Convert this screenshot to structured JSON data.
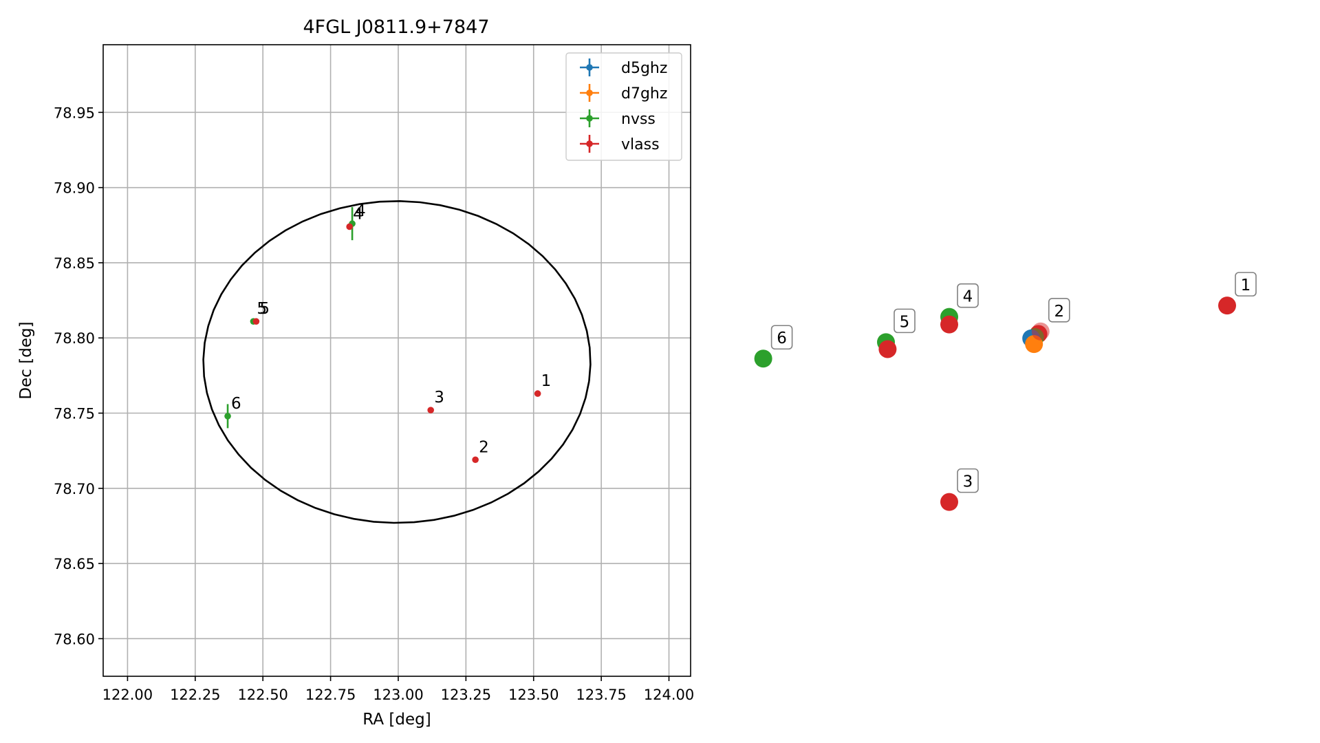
{
  "colors": {
    "d5ghz": "#1f77b4",
    "d7ghz": "#ff7f0e",
    "nvss": "#2ca02c",
    "vlass": "#d62728",
    "ellipse": "#000000",
    "grid": "#b0b0b0"
  },
  "chart_data": [
    {
      "type": "scatter",
      "title": "4FGL J0811.9+7847",
      "xlabel": "RA [deg]",
      "ylabel": "Dec [deg]",
      "xlim": [
        121.91,
        124.08
      ],
      "ylim": [
        78.575,
        78.995
      ],
      "xticks": [
        122.0,
        122.25,
        122.5,
        122.75,
        123.0,
        123.25,
        123.5,
        123.75,
        124.0
      ],
      "xtick_labels": [
        "122.00",
        "122.25",
        "122.50",
        "122.75",
        "123.00",
        "123.25",
        "123.50",
        "123.75",
        "124.00"
      ],
      "yticks": [
        78.6,
        78.65,
        78.7,
        78.75,
        78.8,
        78.85,
        78.9,
        78.95
      ],
      "ytick_labels": [
        "78.60",
        "78.65",
        "78.70",
        "78.75",
        "78.80",
        "78.85",
        "78.90",
        "78.95"
      ],
      "grid": true,
      "legend_position": "top-right",
      "legend": [
        "d5ghz",
        "d7ghz",
        "nvss",
        "vlass"
      ],
      "ellipse": {
        "ra_center": 122.995,
        "dec_center": 78.784,
        "ra_semi_axis": 0.715,
        "dec_semi_axis": 0.107
      },
      "series": [
        {
          "name": "d5ghz",
          "points": []
        },
        {
          "name": "d7ghz",
          "points": []
        },
        {
          "name": "nvss",
          "points": [
            {
              "label": "4",
              "ra": 122.83,
              "dec": 78.876,
              "dec_err": 0.011
            },
            {
              "label": "5",
              "ra": 122.465,
              "dec": 78.811,
              "dec_err": 0.001
            },
            {
              "label": "6",
              "ra": 122.37,
              "dec": 78.748,
              "dec_err": 0.008
            }
          ]
        },
        {
          "name": "vlass",
          "points": [
            {
              "label": "1",
              "ra": 123.515,
              "dec": 78.763
            },
            {
              "label": "2",
              "ra": 123.285,
              "dec": 78.719
            },
            {
              "label": "3",
              "ra": 123.12,
              "dec": 78.752
            },
            {
              "label": "4",
              "ra": 122.82,
              "dec": 78.874
            },
            {
              "label": "5",
              "ra": 122.475,
              "dec": 78.811
            }
          ]
        }
      ]
    },
    {
      "type": "scatter",
      "axes": "off",
      "labels_boxed": true,
      "points": [
        {
          "series": "vlass",
          "label": "1",
          "x": 0.905,
          "y": 0.587
        },
        {
          "series": "vlass",
          "label": "",
          "x": 0.562,
          "y": 0.542
        },
        {
          "series": "nvss",
          "label": "",
          "x": 0.556,
          "y": 0.537
        },
        {
          "series": "d5ghz",
          "label": "",
          "x": 0.549,
          "y": 0.535
        },
        {
          "series": "d7ghz",
          "label": "",
          "x": 0.554,
          "y": 0.526
        },
        {
          "series": "vlass",
          "label": "2",
          "x": 0.566,
          "y": 0.546,
          "faded": true
        },
        {
          "series": "nvss",
          "label": "4",
          "x": 0.4,
          "y": 0.569
        },
        {
          "series": "vlass",
          "label": "",
          "x": 0.4,
          "y": 0.557
        },
        {
          "series": "nvss",
          "label": "5",
          "x": 0.285,
          "y": 0.529
        },
        {
          "series": "vlass",
          "label": "",
          "x": 0.288,
          "y": 0.518
        },
        {
          "series": "nvss",
          "label": "6",
          "x": 0.062,
          "y": 0.503
        },
        {
          "series": "vlass",
          "label": "3",
          "x": 0.4,
          "y": 0.276
        }
      ]
    }
  ]
}
